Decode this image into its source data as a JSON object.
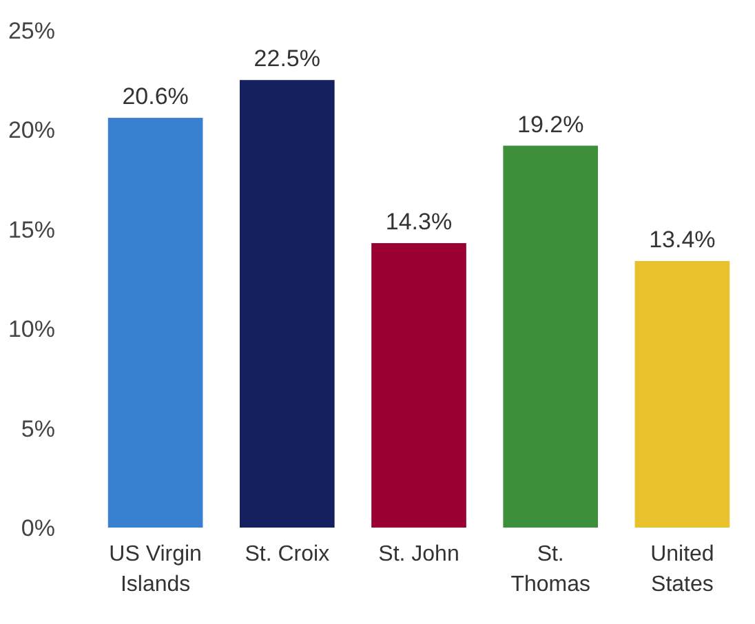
{
  "chart_data": {
    "type": "bar",
    "categories": [
      "US Virgin Islands",
      "St. Croix",
      "St. John",
      "St. Thomas",
      "United States"
    ],
    "values": [
      20.6,
      22.5,
      14.3,
      19.2,
      13.4
    ],
    "colors": [
      "#3a80d0",
      "#15205f",
      "#9b0033",
      "#3e8f3a",
      "#e8c22c"
    ],
    "value_labels": [
      "20.6%",
      "22.5%",
      "14.3%",
      "19.2%",
      "13.4%"
    ],
    "ylim": [
      0,
      25
    ],
    "yticks": [
      {
        "value": 0,
        "label": "0%"
      },
      {
        "value": 5,
        "label": "5%"
      },
      {
        "value": 10,
        "label": "10%"
      },
      {
        "value": 15,
        "label": "15%"
      },
      {
        "value": 20,
        "label": "20%"
      },
      {
        "value": 25,
        "label": "25%"
      }
    ],
    "grid": false
  }
}
